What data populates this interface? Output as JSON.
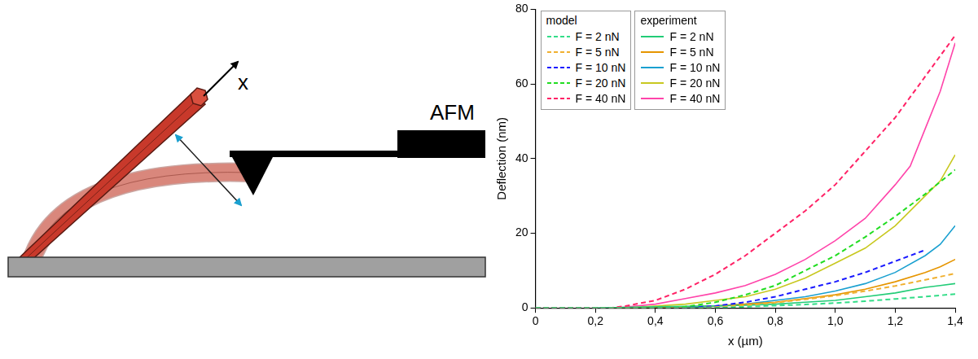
{
  "diagram": {
    "axis_label": "x",
    "instrument_label": "AFM"
  },
  "chart_data": {
    "type": "line",
    "x_label": "x (µm)",
    "y_label": "Deflection (nm)",
    "xlim": [
      0,
      1.4
    ],
    "xticks": [
      0,
      {
        "value": 0.2,
        "label": "0,2"
      },
      {
        "value": 0.4,
        "label": "0,4"
      },
      {
        "value": 0.6,
        "label": "0,6"
      },
      {
        "value": 0.8,
        "label": "0,8"
      },
      {
        "value": 1.0,
        "label": "1,0"
      },
      {
        "value": 1.2,
        "label": "1,2"
      },
      {
        "value": 1.4,
        "label": "1,4"
      }
    ],
    "ylim": [
      0,
      80
    ],
    "yticks": [
      0,
      20,
      40,
      60,
      80
    ],
    "grid": false,
    "legend": "upper left",
    "series": [
      {
        "group": "model",
        "name": "F = 2 nN",
        "color": "#33dd88",
        "line_style": "dashed",
        "x": [
          0,
          0.6,
          0.7,
          0.8,
          0.9,
          1.0,
          1.1,
          1.2,
          1.3,
          1.4
        ],
        "values": [
          0,
          0,
          0.3,
          0.6,
          0.9,
          1.3,
          1.8,
          2.4,
          3,
          3.7
        ]
      },
      {
        "group": "model",
        "name": "F = 5 nN",
        "color": "#f0b030",
        "line_style": "dashed",
        "x": [
          0,
          0.55,
          0.6,
          0.7,
          0.8,
          0.9,
          1.0,
          1.1,
          1.2,
          1.3,
          1.4
        ],
        "values": [
          0,
          0,
          0.2,
          0.7,
          1.4,
          2.3,
          3.3,
          4.5,
          5.9,
          7.5,
          9.2
        ]
      },
      {
        "group": "model",
        "name": "F = 10 nN",
        "color": "#1a1aff",
        "line_style": "dashed",
        "x": [
          0,
          0.5,
          0.6,
          0.7,
          0.8,
          0.9,
          1.0,
          1.1,
          1.2,
          1.3
        ],
        "values": [
          0,
          0,
          0.5,
          1.5,
          3,
          5,
          7,
          9.5,
          12.5,
          15.5
        ]
      },
      {
        "group": "model",
        "name": "F = 20 nN",
        "color": "#22dd22",
        "line_style": "dashed",
        "x": [
          0,
          0.45,
          0.5,
          0.6,
          0.7,
          0.8,
          0.9,
          1.0,
          1.1,
          1.2,
          1.3,
          1.4
        ],
        "values": [
          0,
          0,
          0.3,
          1.5,
          3.5,
          6,
          10,
          14,
          19,
          24.5,
          30.5,
          37
        ]
      },
      {
        "group": "model",
        "name": "F = 40 nN",
        "color": "#ff2266",
        "line_style": "dashed",
        "x": [
          0,
          0.25,
          0.3,
          0.4,
          0.5,
          0.6,
          0.7,
          0.8,
          0.9,
          1.0,
          1.1,
          1.2,
          1.3,
          1.4
        ],
        "values": [
          0,
          0,
          0.5,
          2,
          5,
          9,
          14,
          20,
          26,
          33,
          42,
          51,
          62,
          73
        ]
      },
      {
        "group": "experiment",
        "name": "F = 2 nN",
        "color": "#22cc77",
        "line_style": "solid",
        "x": [
          0.2,
          0.4,
          0.6,
          0.7,
          0.8,
          0.9,
          1.0,
          1.1,
          1.2,
          1.3,
          1.35,
          1.4
        ],
        "values": [
          0,
          0.3,
          0.5,
          0.7,
          1,
          1.5,
          2,
          3,
          4,
          5.5,
          6,
          6.5
        ]
      },
      {
        "group": "experiment",
        "name": "F = 5 nN",
        "color": "#e69500",
        "line_style": "solid",
        "x": [
          0.25,
          0.5,
          0.6,
          0.7,
          0.8,
          0.9,
          1.0,
          1.1,
          1.2,
          1.3,
          1.35,
          1.4
        ],
        "values": [
          0,
          0.3,
          0.5,
          1,
          1.5,
          2.5,
          3.5,
          5,
          7,
          9.5,
          11,
          13
        ]
      },
      {
        "group": "experiment",
        "name": "F = 10 nN",
        "color": "#1aa0d0",
        "line_style": "solid",
        "x": [
          0.5,
          0.6,
          0.7,
          0.8,
          0.9,
          1.0,
          1.1,
          1.2,
          1.3,
          1.35,
          1.4
        ],
        "values": [
          0,
          0.5,
          1,
          2,
          3,
          4.5,
          6.5,
          9.5,
          14,
          17,
          22
        ]
      },
      {
        "group": "experiment",
        "name": "F = 20 nN",
        "color": "#c8c820",
        "line_style": "solid",
        "x": [
          0.3,
          0.5,
          0.6,
          0.7,
          0.8,
          0.9,
          1.0,
          1.1,
          1.2,
          1.3,
          1.35,
          1.4
        ],
        "values": [
          0,
          1,
          2,
          3,
          5,
          8,
          12,
          16,
          22,
          30,
          34,
          41
        ]
      },
      {
        "group": "experiment",
        "name": "F = 40 nN",
        "color": "#ff44aa",
        "line_style": "solid",
        "x": [
          0.27,
          0.4,
          0.5,
          0.6,
          0.7,
          0.8,
          0.9,
          1.0,
          1.1,
          1.2,
          1.25,
          1.3,
          1.35,
          1.4
        ],
        "values": [
          0,
          1,
          2.5,
          4,
          6,
          9,
          13,
          18,
          24,
          33,
          38,
          48,
          58,
          71
        ]
      }
    ]
  }
}
